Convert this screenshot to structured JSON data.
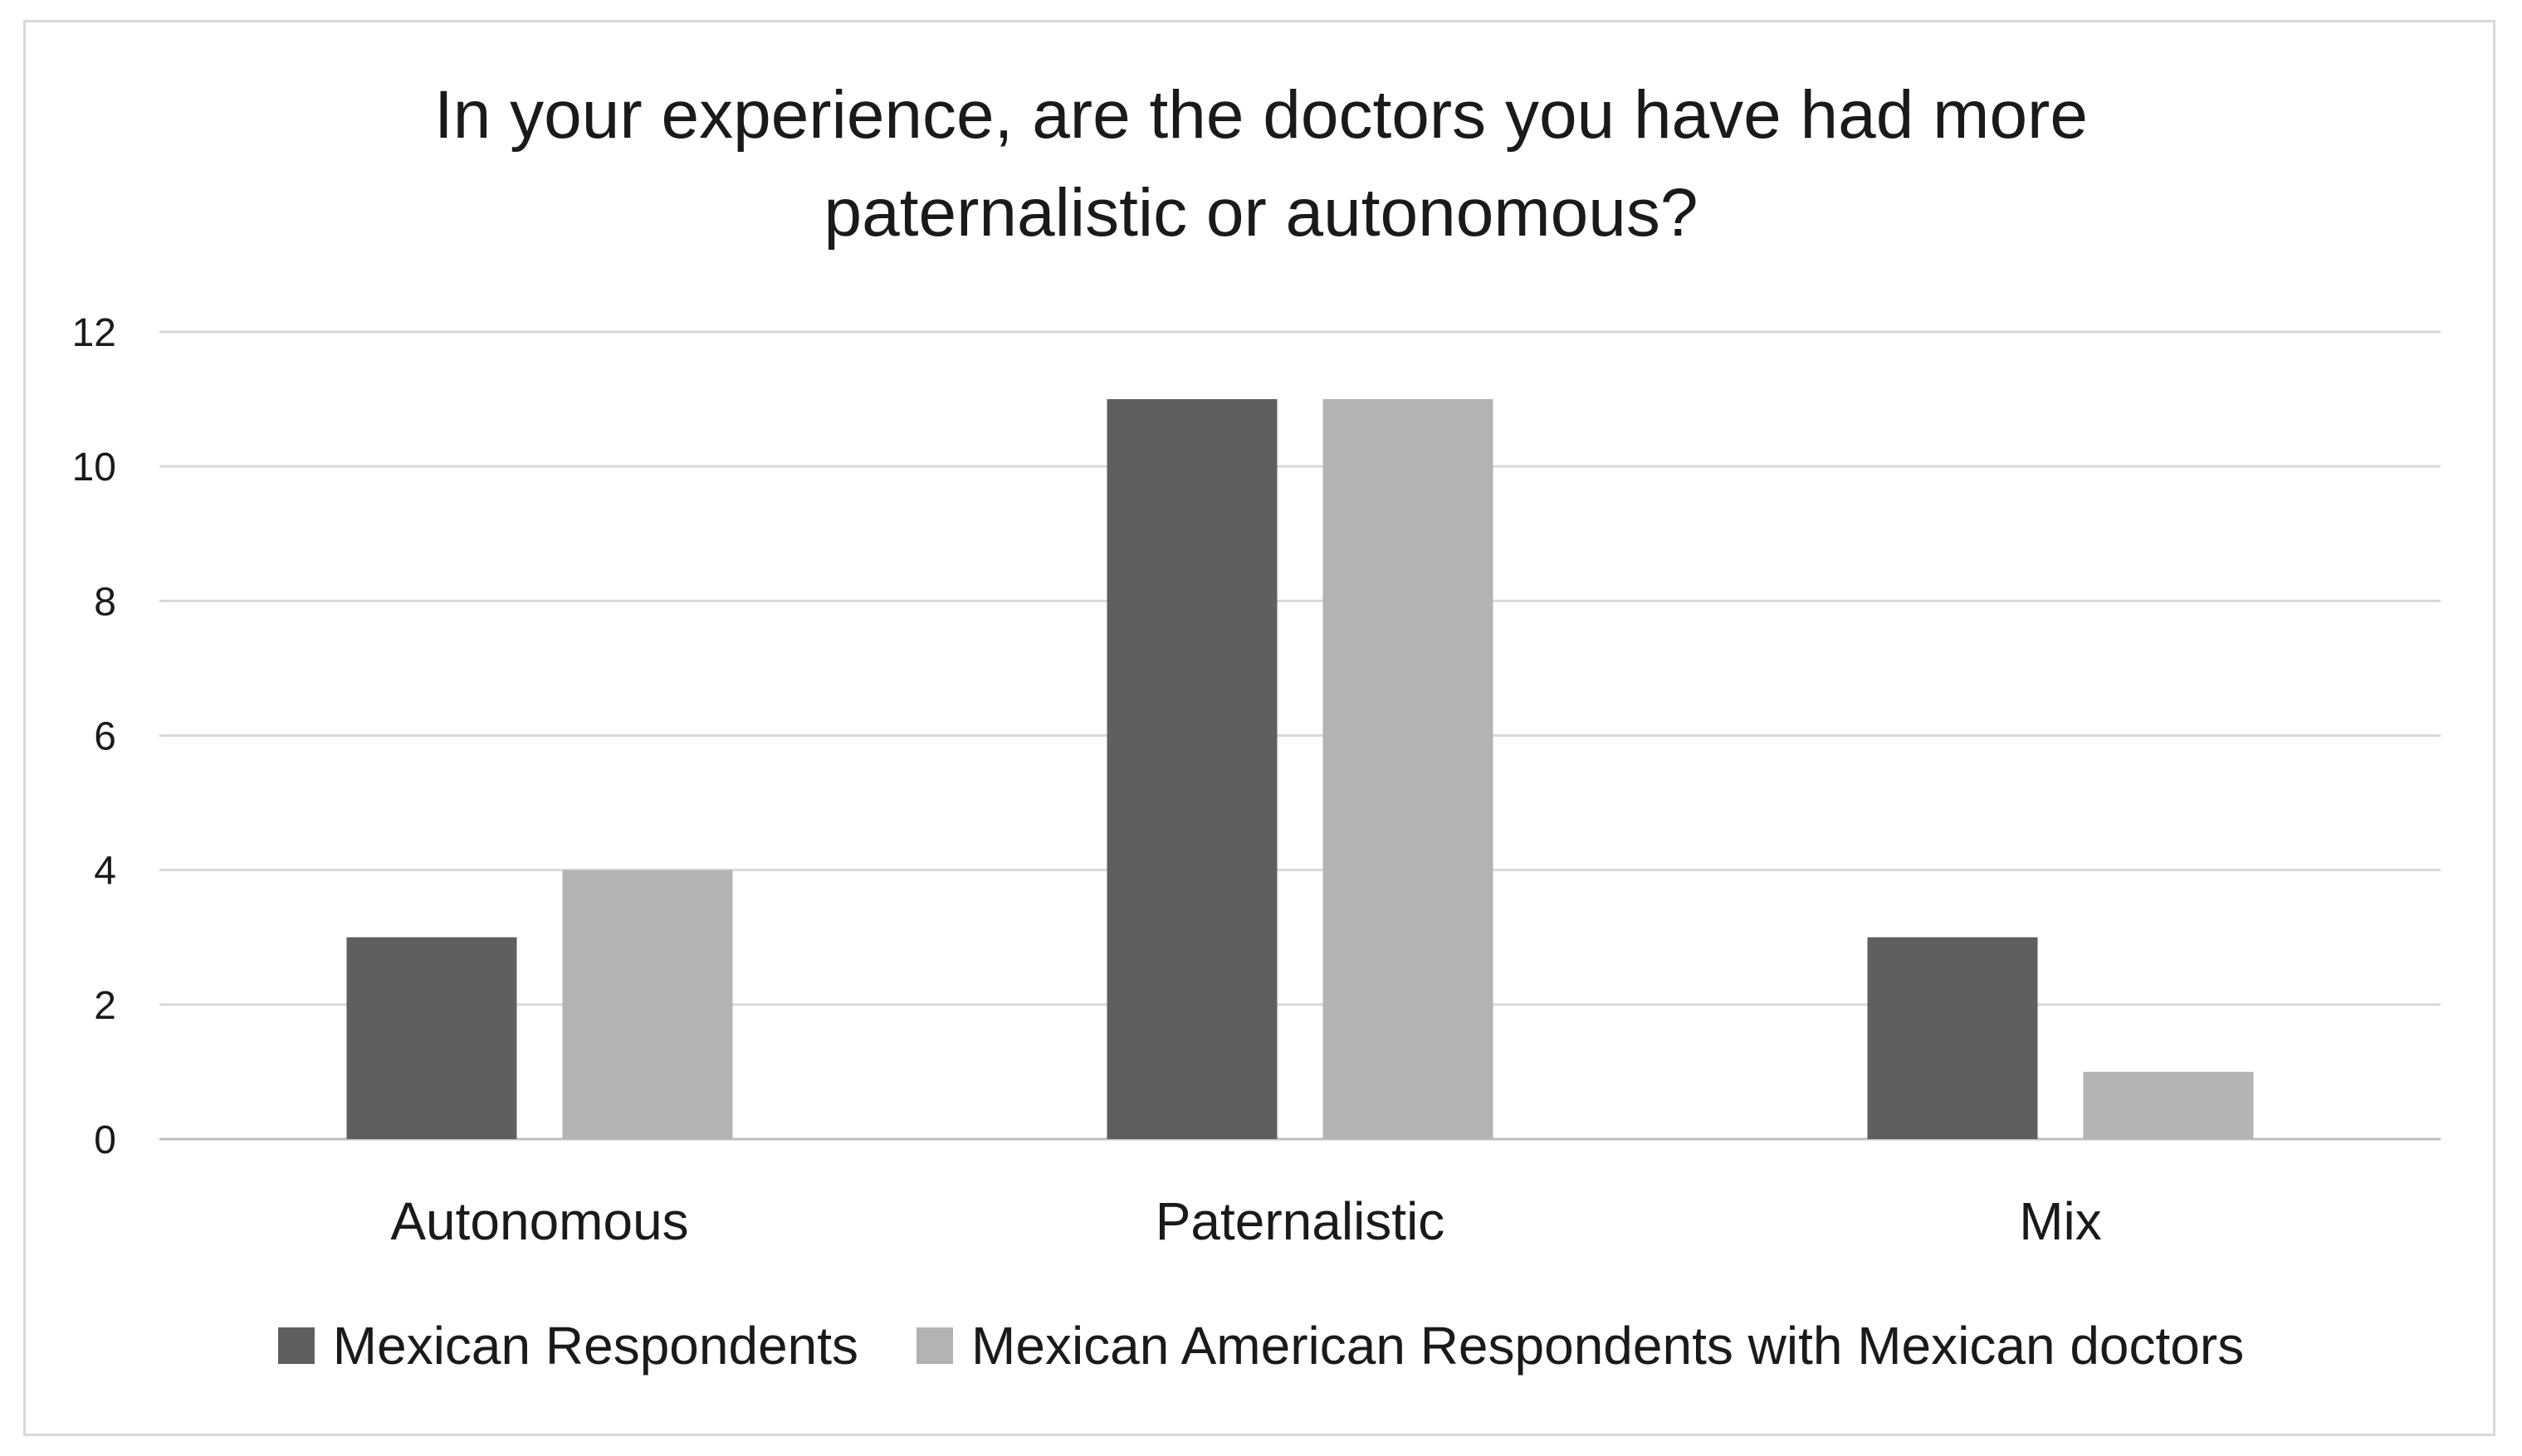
{
  "chart_data": {
    "type": "bar",
    "title_lines": [
      "In your experience, are the doctors you have had more",
      "paternalistic or autonomous?"
    ],
    "categories": [
      "Autonomous",
      "Paternalistic",
      "Mix"
    ],
    "series": [
      {
        "name": "Mexican Respondents",
        "values": [
          3,
          11,
          3
        ],
        "color": "#5f5f5f"
      },
      {
        "name": "Mexican American Respondents with Mexican doctors",
        "values": [
          4,
          11,
          1
        ],
        "color": "#b3b3b3"
      }
    ],
    "ylim": [
      0,
      12
    ],
    "yticks": [
      0,
      2,
      4,
      6,
      8,
      10,
      12
    ],
    "grid": true,
    "legend_position": "bottom"
  }
}
